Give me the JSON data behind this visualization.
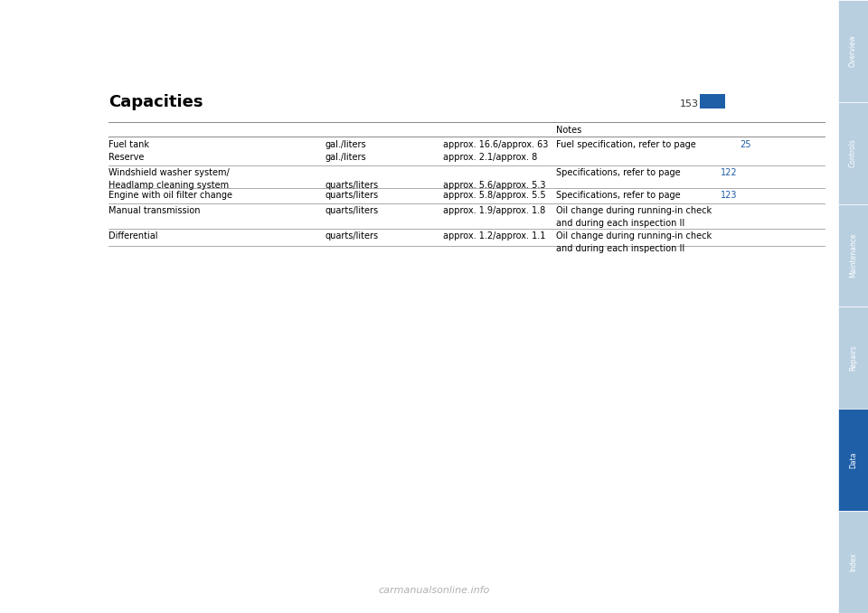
{
  "page_title": "Capacities",
  "page_number": "153",
  "background_color": "#ffffff",
  "title_font_size": 13,
  "body_font_size": 7.0,
  "sidebar_labels": [
    "Overview",
    "Controls",
    "Maintenance",
    "Repairs",
    "Data",
    "Index"
  ],
  "sidebar_colors": [
    "#b8cfe0",
    "#b8cfe0",
    "#b8cfe0",
    "#b8cfe0",
    "#1e5fa8",
    "#b8cfe0"
  ],
  "sidebar_text_color": "#ffffff",
  "page_number_box_color": "#1e5fa8",
  "rows": [
    {
      "col1": "Fuel tank\nReserve",
      "col2": "gal./liters\ngal./liters",
      "col3": "approx. 16.6/approx. 63\napprox. 2.1/approx. 8",
      "col4_before": "Fuel specification, refer to page ",
      "col4_link": "25",
      "col4_after": ""
    },
    {
      "col1": "Windshield washer system/\nHeadlamp cleaning system",
      "col2": "\nquarts/liters",
      "col3": "\napprox. 5.6/approx. 5.3",
      "col4_before": "Specifications, refer to page ",
      "col4_link": "122",
      "col4_after": ""
    },
    {
      "col1": "Engine with oil filter change",
      "col2": "quarts/liters",
      "col3": "approx. 5.8/approx. 5.5",
      "col4_before": "Specifications, refer to page ",
      "col4_link": "123",
      "col4_after": ""
    },
    {
      "col1": "Manual transmission",
      "col2": "quarts/liters",
      "col3": "approx. 1.9/approx. 1.8",
      "col4_before": "Oil change during running-in check\nand during each inspection II",
      "col4_link": "",
      "col4_after": ""
    },
    {
      "col1": "Differential",
      "col2": "quarts/liters",
      "col3": "approx. 1.2/approx. 1.1",
      "col4_before": "Oil change during running-in check\nand during each inspection II",
      "col4_link": "",
      "col4_after": ""
    }
  ],
  "watermark_text": "carmanualsonline.info",
  "link_color": "#1e5fa8"
}
